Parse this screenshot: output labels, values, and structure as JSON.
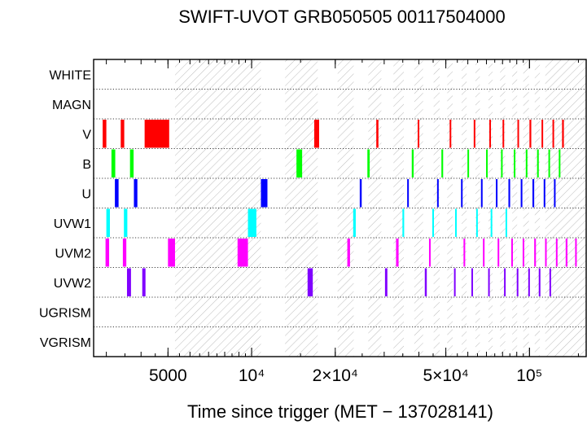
{
  "chart_data": {
    "type": "timeline",
    "title": "SWIFT-UVOT GRB050505 00117504000",
    "xlabel": "Time since trigger (MET − 137028141)",
    "ylabel": "",
    "x_scale": "log",
    "xlim": [
      2700,
      160000
    ],
    "x_ticks": [
      {
        "value": 5000,
        "label": "5000"
      },
      {
        "value": 10000,
        "label": "10⁴"
      },
      {
        "value": 20000,
        "label": "2×10⁴"
      },
      {
        "value": 50000,
        "label": "5×10⁴"
      },
      {
        "value": 100000,
        "label": "10⁵"
      }
    ],
    "filters": [
      "WHITE",
      "MAGN",
      "V",
      "B",
      "U",
      "UVW1",
      "UVM2",
      "UVW2",
      "UGRISM",
      "VGRISM"
    ],
    "colors": {
      "V": "#ff0000",
      "B": "#00ff00",
      "U": "#0000ff",
      "UVW1": "#00ffff",
      "UVM2": "#ff00ff",
      "UVW2": "#8000ff"
    },
    "hatched_gaps": [
      [
        5300,
        10800
      ],
      [
        13200,
        17300
      ],
      [
        20400,
        23300
      ],
      [
        26300,
        29300
      ],
      [
        32400,
        35300
      ],
      [
        38500,
        41400
      ],
      [
        45200,
        47500
      ],
      [
        50600,
        52900
      ],
      [
        57000,
        59400
      ],
      [
        63900,
        66300
      ],
      [
        71200,
        73700
      ],
      [
        78400,
        81800
      ],
      [
        86700,
        90300
      ],
      [
        95000,
        99500
      ],
      [
        104500,
        109000
      ],
      [
        114000,
        160000
      ]
    ],
    "exposures": {
      "V": [
        [
          2910,
          3000
        ],
        [
          3380,
          3480
        ],
        [
          4120,
          5050
        ],
        [
          16800,
          17500
        ],
        [
          28100,
          28600
        ],
        [
          39600,
          40100
        ],
        [
          51600,
          52200
        ],
        [
          63000,
          63700
        ],
        [
          71700,
          72500
        ],
        [
          80000,
          81000
        ],
        [
          90500,
          91500
        ],
        [
          100000,
          101500
        ],
        [
          110500,
          111800
        ],
        [
          121000,
          122500
        ],
        [
          131000,
          133000
        ]
      ],
      "B": [
        [
          3130,
          3230
        ],
        [
          3650,
          3760
        ],
        [
          14500,
          15200
        ],
        [
          26100,
          26600
        ],
        [
          37700,
          38300
        ],
        [
          48200,
          48900
        ],
        [
          59800,
          60500
        ],
        [
          69800,
          70600
        ],
        [
          79000,
          80000
        ],
        [
          87800,
          88800
        ],
        [
          97000,
          98300
        ],
        [
          106500,
          108000
        ],
        [
          117000,
          118500
        ],
        [
          127500,
          129000
        ]
      ],
      "U": [
        [
          3220,
          3320
        ],
        [
          3770,
          3880
        ],
        [
          10800,
          11400
        ],
        [
          24500,
          24900
        ],
        [
          36300,
          36800
        ],
        [
          46500,
          47100
        ],
        [
          56700,
          57400
        ],
        [
          66900,
          67700
        ],
        [
          75700,
          76600
        ],
        [
          84000,
          85200
        ],
        [
          93000,
          94300
        ],
        [
          102500,
          104000
        ],
        [
          112500,
          114000
        ],
        [
          122500,
          124000
        ]
      ],
      "UVW1": [
        [
          3000,
          3090
        ],
        [
          3470,
          3570
        ],
        [
          9700,
          10400
        ],
        [
          23200,
          23700
        ],
        [
          34900,
          35400
        ],
        [
          44700,
          45300
        ],
        [
          54000,
          54700
        ],
        [
          64300,
          65000
        ],
        [
          72500,
          73300
        ],
        [
          82000,
          83000
        ]
      ],
      "UVM2": [
        [
          2980,
          3070
        ],
        [
          3440,
          3540
        ],
        [
          5000,
          5300
        ],
        [
          8900,
          9700
        ],
        [
          22100,
          22600
        ],
        [
          33100,
          33800
        ],
        [
          43500,
          44100
        ],
        [
          57900,
          58700
        ],
        [
          68000,
          68800
        ],
        [
          76800,
          77700
        ],
        [
          86000,
          87000
        ],
        [
          94500,
          95700
        ],
        [
          104000,
          105500
        ],
        [
          113800,
          115200
        ],
        [
          124500,
          126000
        ],
        [
          135000,
          137000
        ],
        [
          146000,
          148000
        ]
      ],
      "UVW2": [
        [
          3560,
          3680
        ],
        [
          4040,
          4150
        ],
        [
          15900,
          16600
        ],
        [
          30200,
          30800
        ],
        [
          42000,
          42700
        ],
        [
          53500,
          54200
        ],
        [
          61800,
          62600
        ],
        [
          71000,
          71800
        ],
        [
          81000,
          82000
        ],
        [
          90000,
          91000
        ],
        [
          99000,
          100000
        ],
        [
          108000,
          109500
        ],
        [
          118000,
          119500
        ]
      ]
    }
  }
}
